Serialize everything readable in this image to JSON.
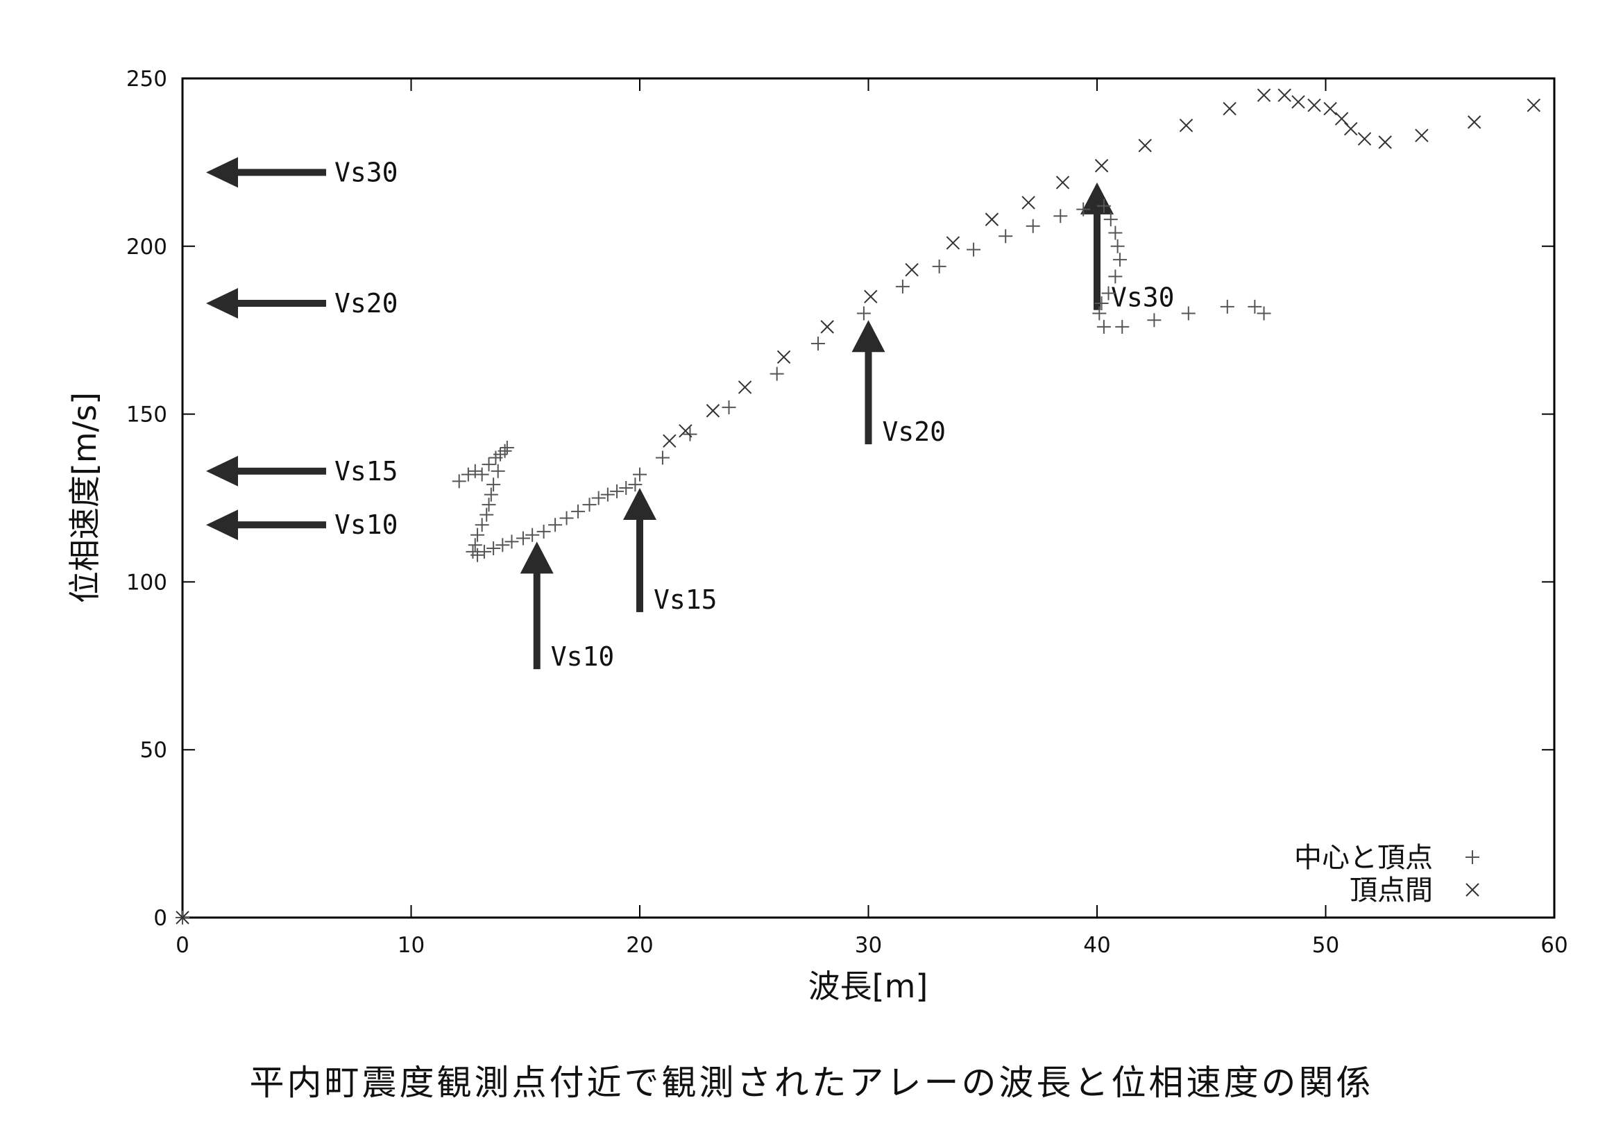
{
  "chart_data": {
    "type": "scatter",
    "title": "平内町震度観測点付近で観測されたアレーの波長と位相速度の関係",
    "xlabel": "波長[m]",
    "ylabel": "位相速度[m/s]",
    "xlim": [
      0,
      60
    ],
    "ylim": [
      0,
      250
    ],
    "xticks": [
      "0",
      "10",
      "20",
      "30",
      "40",
      "50",
      "60"
    ],
    "yticks": [
      "0",
      "50",
      "100",
      "150",
      "200",
      "250"
    ],
    "legend_position": "bottom-right",
    "series": [
      {
        "name": "中心と頂点",
        "marker": "+",
        "points": [
          [
            0,
            0
          ],
          [
            12.1,
            130
          ],
          [
            12.5,
            132
          ],
          [
            12.8,
            133
          ],
          [
            13.1,
            132
          ],
          [
            13.4,
            135
          ],
          [
            13.7,
            137
          ],
          [
            13.9,
            138
          ],
          [
            14.1,
            139
          ],
          [
            14.2,
            140
          ],
          [
            13.8,
            133
          ],
          [
            13.6,
            129
          ],
          [
            13.5,
            126
          ],
          [
            13.4,
            123
          ],
          [
            13.3,
            120
          ],
          [
            13.1,
            117
          ],
          [
            12.9,
            114
          ],
          [
            12.8,
            111
          ],
          [
            12.7,
            109
          ],
          [
            12.9,
            108
          ],
          [
            13.2,
            109
          ],
          [
            13.6,
            110
          ],
          [
            14.0,
            111
          ],
          [
            14.4,
            112
          ],
          [
            14.9,
            113
          ],
          [
            15.3,
            114
          ],
          [
            15.8,
            115
          ],
          [
            16.3,
            117
          ],
          [
            16.8,
            119
          ],
          [
            17.3,
            121
          ],
          [
            17.8,
            123
          ],
          [
            18.2,
            125
          ],
          [
            18.6,
            126
          ],
          [
            19.0,
            127
          ],
          [
            19.4,
            128
          ],
          [
            19.8,
            129
          ],
          [
            20.0,
            132
          ],
          [
            21.0,
            137
          ],
          [
            22.2,
            144
          ],
          [
            23.9,
            152
          ],
          [
            26.0,
            162
          ],
          [
            27.8,
            171
          ],
          [
            29.8,
            180
          ],
          [
            31.5,
            188
          ],
          [
            33.1,
            194
          ],
          [
            34.6,
            199
          ],
          [
            36.0,
            203
          ],
          [
            37.2,
            206
          ],
          [
            38.4,
            209
          ],
          [
            39.4,
            211
          ],
          [
            40.3,
            212
          ],
          [
            40.6,
            208
          ],
          [
            40.8,
            204
          ],
          [
            40.9,
            200
          ],
          [
            41.0,
            196
          ],
          [
            40.8,
            191
          ],
          [
            40.5,
            186
          ],
          [
            40.2,
            183
          ],
          [
            40.1,
            180
          ],
          [
            40.3,
            176
          ],
          [
            41.1,
            176
          ],
          [
            42.5,
            178
          ],
          [
            44.0,
            180
          ],
          [
            45.7,
            182
          ],
          [
            46.9,
            182
          ],
          [
            47.3,
            180
          ]
        ]
      },
      {
        "name": "頂点間",
        "marker": "x",
        "points": [
          [
            0,
            0
          ],
          [
            21.3,
            142
          ],
          [
            22.0,
            145
          ],
          [
            23.2,
            151
          ],
          [
            24.6,
            158
          ],
          [
            26.3,
            167
          ],
          [
            28.2,
            176
          ],
          [
            30.1,
            185
          ],
          [
            31.9,
            193
          ],
          [
            33.7,
            201
          ],
          [
            35.4,
            208
          ],
          [
            37.0,
            213
          ],
          [
            38.5,
            219
          ],
          [
            40.2,
            224
          ],
          [
            42.1,
            230
          ],
          [
            43.9,
            236
          ],
          [
            45.8,
            241
          ],
          [
            47.3,
            245
          ],
          [
            48.2,
            245
          ],
          [
            48.8,
            243
          ],
          [
            49.5,
            242
          ],
          [
            50.2,
            241
          ],
          [
            50.7,
            238
          ],
          [
            51.1,
            235
          ],
          [
            51.7,
            232
          ],
          [
            52.6,
            231
          ],
          [
            54.2,
            233
          ],
          [
            56.5,
            237
          ],
          [
            59.1,
            242
          ]
        ]
      }
    ],
    "annotations": {
      "horizontal_arrows": [
        {
          "label": "Vs30",
          "y": 222
        },
        {
          "label": "Vs20",
          "y": 183
        },
        {
          "label": "Vs15",
          "y": 133
        },
        {
          "label": "Vs10",
          "y": 117
        }
      ],
      "vertical_arrows": [
        {
          "label": "Vs10",
          "x": 15.5,
          "y_from": 74,
          "y_to": 112
        },
        {
          "label": "Vs15",
          "x": 20.0,
          "y_from": 91,
          "y_to": 128
        },
        {
          "label": "Vs20",
          "x": 30.0,
          "y_from": 141,
          "y_to": 178
        },
        {
          "label": "Vs30",
          "x": 40.0,
          "y_from": 181,
          "y_to": 219
        }
      ]
    }
  }
}
